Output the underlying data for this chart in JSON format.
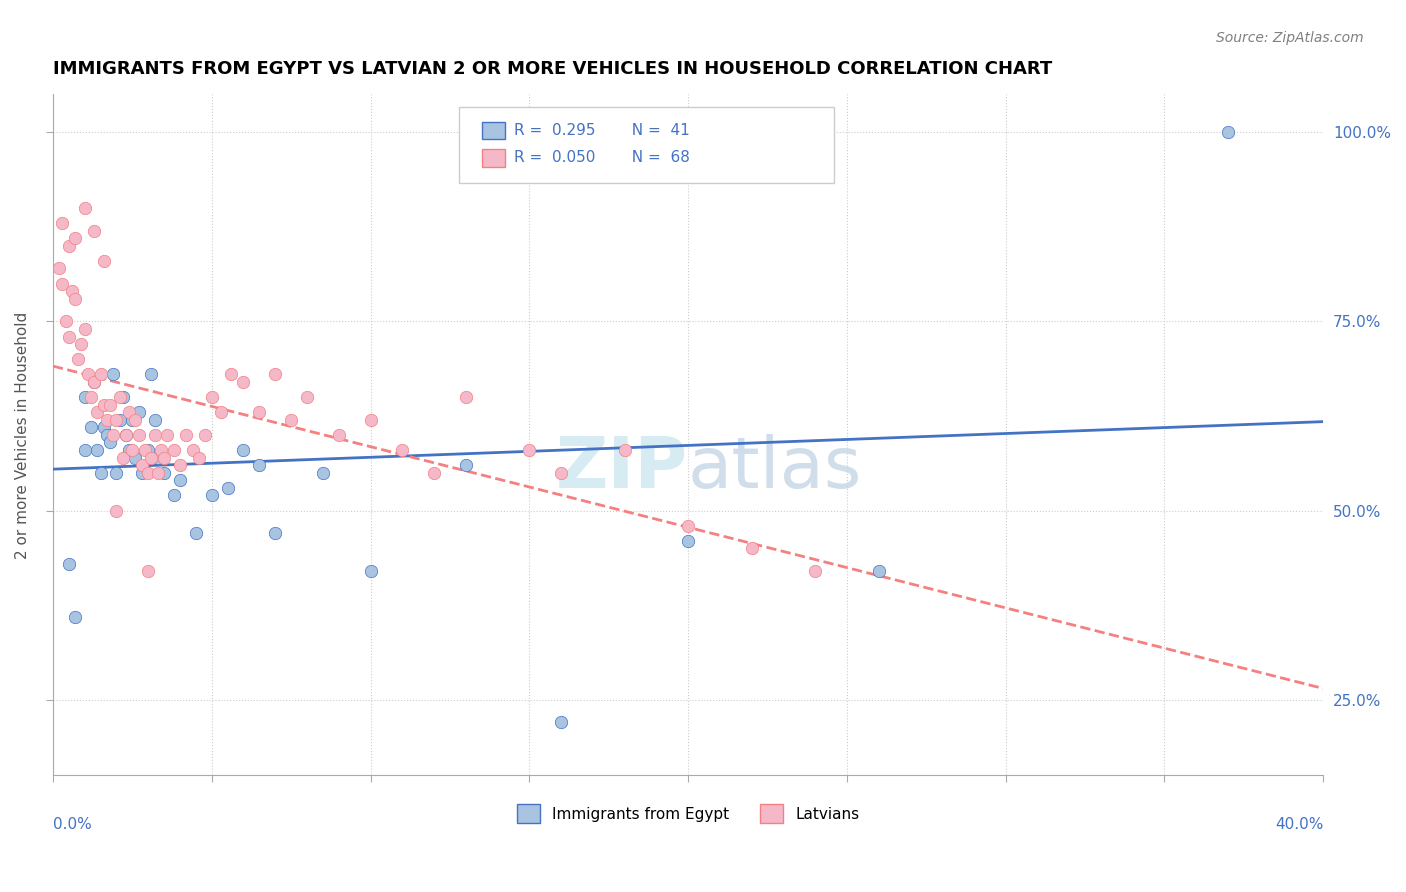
{
  "title": "IMMIGRANTS FROM EGYPT VS LATVIAN 2 OR MORE VEHICLES IN HOUSEHOLD CORRELATION CHART",
  "source_text": "Source: ZipAtlas.com",
  "ylabel_label": "2 or more Vehicles in Household",
  "ytick_values": [
    0.25,
    0.5,
    0.75,
    1.0
  ],
  "xmin": 0.0,
  "xmax": 0.4,
  "ymin": 0.15,
  "ymax": 1.05,
  "legend_blue_r": "R =  0.295",
  "legend_blue_n": "  N =  41",
  "legend_pink_r": "R =  0.050",
  "legend_pink_n": "  N =  68",
  "legend_bottom_blue": "Immigrants from Egypt",
  "legend_bottom_pink": "Latvians",
  "color_blue": "#a8c4e0",
  "color_pink": "#f4b8c8",
  "color_blue_line": "#4472c4",
  "color_pink_line": "#f48080",
  "blue_points_x": [
    0.005,
    0.007,
    0.01,
    0.01,
    0.012,
    0.013,
    0.014,
    0.015,
    0.016,
    0.017,
    0.018,
    0.019,
    0.02,
    0.021,
    0.022,
    0.023,
    0.024,
    0.025,
    0.026,
    0.027,
    0.028,
    0.03,
    0.031,
    0.032,
    0.033,
    0.035,
    0.038,
    0.04,
    0.045,
    0.05,
    0.055,
    0.06,
    0.065,
    0.07,
    0.085,
    0.1,
    0.13,
    0.16,
    0.2,
    0.26,
    0.37
  ],
  "blue_points_y": [
    0.43,
    0.36,
    0.58,
    0.65,
    0.61,
    0.67,
    0.58,
    0.55,
    0.61,
    0.6,
    0.59,
    0.68,
    0.55,
    0.62,
    0.65,
    0.6,
    0.58,
    0.62,
    0.57,
    0.63,
    0.55,
    0.58,
    0.68,
    0.62,
    0.57,
    0.55,
    0.52,
    0.54,
    0.47,
    0.52,
    0.53,
    0.58,
    0.56,
    0.47,
    0.55,
    0.42,
    0.56,
    0.22,
    0.46,
    0.42,
    1.0
  ],
  "pink_points_x": [
    0.002,
    0.003,
    0.004,
    0.005,
    0.006,
    0.007,
    0.008,
    0.009,
    0.01,
    0.011,
    0.012,
    0.013,
    0.014,
    0.015,
    0.016,
    0.017,
    0.018,
    0.019,
    0.02,
    0.021,
    0.022,
    0.023,
    0.024,
    0.025,
    0.026,
    0.027,
    0.028,
    0.029,
    0.03,
    0.031,
    0.032,
    0.033,
    0.034,
    0.035,
    0.036,
    0.038,
    0.04,
    0.042,
    0.044,
    0.046,
    0.048,
    0.05,
    0.053,
    0.056,
    0.06,
    0.065,
    0.07,
    0.075,
    0.08,
    0.09,
    0.1,
    0.11,
    0.12,
    0.13,
    0.15,
    0.16,
    0.18,
    0.2,
    0.22,
    0.24,
    0.003,
    0.005,
    0.007,
    0.01,
    0.013,
    0.016,
    0.02,
    0.03
  ],
  "pink_points_y": [
    0.82,
    0.8,
    0.75,
    0.73,
    0.79,
    0.78,
    0.7,
    0.72,
    0.74,
    0.68,
    0.65,
    0.67,
    0.63,
    0.68,
    0.64,
    0.62,
    0.64,
    0.6,
    0.62,
    0.65,
    0.57,
    0.6,
    0.63,
    0.58,
    0.62,
    0.6,
    0.56,
    0.58,
    0.55,
    0.57,
    0.6,
    0.55,
    0.58,
    0.57,
    0.6,
    0.58,
    0.56,
    0.6,
    0.58,
    0.57,
    0.6,
    0.65,
    0.63,
    0.68,
    0.67,
    0.63,
    0.68,
    0.62,
    0.65,
    0.6,
    0.62,
    0.58,
    0.55,
    0.65,
    0.58,
    0.55,
    0.58,
    0.48,
    0.45,
    0.42,
    0.88,
    0.85,
    0.86,
    0.9,
    0.87,
    0.83,
    0.5,
    0.42
  ]
}
